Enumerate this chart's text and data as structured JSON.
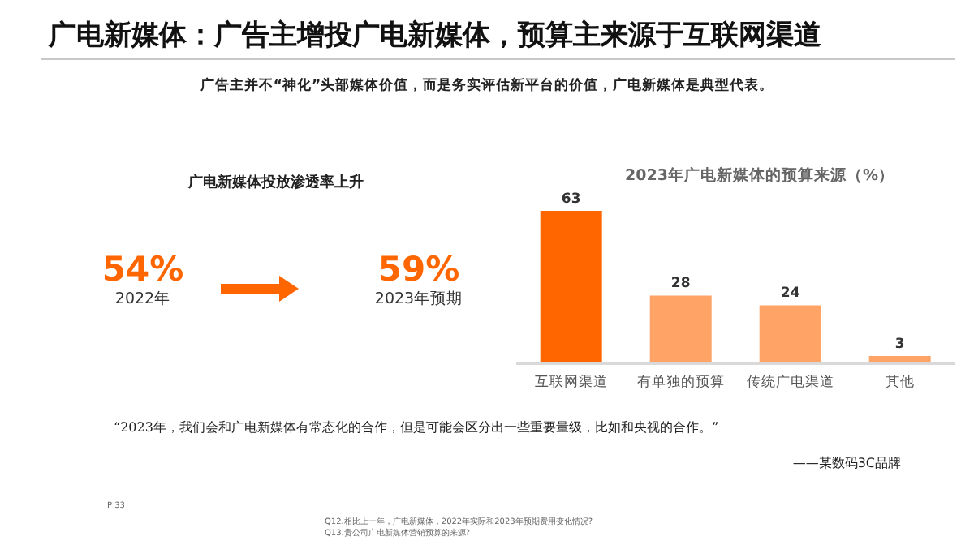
{
  "chart_data": [
    {
      "type": "other",
      "title": "广电新媒体：广告主增投广电新媒体，预算主来源于互联网渠道",
      "subtitle": "广告主并不“神化”头部媒体价值，而是务实评估新平台的价值，广电新媒体是典型代表。",
      "annotations": [
        "“2023年，我们会和广电新媒体有常态化的合作，但是可能会区分出一些重要量级，比如和央视的合作。”",
        "——某数码3C品牌",
        "P 33",
        "Q12.相比上一年，广电新媒体，2022年实际和2023年预期费用变化情况?",
        "Q13.贵公司广电新媒体营销预算的来源?"
      ]
    },
    {
      "type": "other",
      "title": "广电新媒体投放渗透率上升",
      "categories": [
        "2022年",
        "2023年预期"
      ],
      "values": [
        54,
        59
      ],
      "value_labels": [
        "54%",
        "59%"
      ],
      "color": "#ff6600"
    },
    {
      "type": "bar",
      "title": "2023年广电新媒体的预算来源（%）",
      "categories": [
        "互联网渠道",
        "有单独的预算",
        "传统广电渠道",
        "其他"
      ],
      "values": [
        63,
        28,
        24,
        3
      ],
      "colors": [
        "#ff6600",
        "#ffa366",
        "#ffa366",
        "#ffa366"
      ],
      "data_labels": true
    }
  ]
}
